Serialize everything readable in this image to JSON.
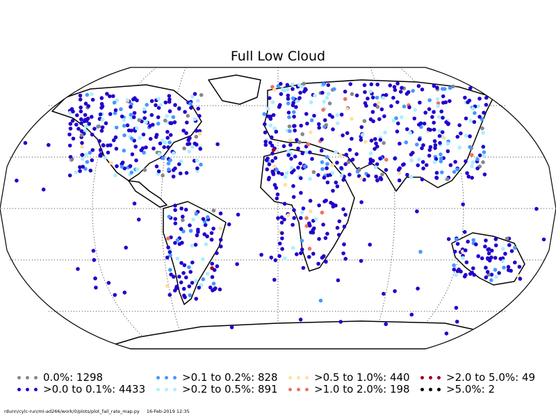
{
  "title": "Full Low Cloud",
  "legend": [
    {
      "label": "0.0%: 1298",
      "color": "#888888"
    },
    {
      "label": ">0.0 to 0.1%: 4433",
      "color": "#2200cc"
    },
    {
      "label": ">0.1 to 0.2%: 828",
      "color": "#4499ff"
    },
    {
      "label": ">0.2 to 0.5%: 891",
      "color": "#aaeeff"
    },
    {
      "label": ">0.5 to 1.0%: 440",
      "color": "#ffe0a0"
    },
    {
      "label": ">1.0 to 2.0%: 198",
      "color": "#f07060"
    },
    {
      "label": ">2.0 to 5.0%: 49",
      "color": "#a00020"
    },
    {
      "label": ">5.0%: 2",
      "color": "#000000"
    }
  ],
  "footer": {
    "path": "rdunn/cylc-run/mi-ad266/work/0/plots/plot_fail_rate_map.py",
    "timestamp": "16-Feb-2019 12:35"
  },
  "map": {
    "projection": "Robinson",
    "graticule": "dotted",
    "marker_colors": [
      "#888888",
      "#2200cc",
      "#4499ff",
      "#aaeeff",
      "#ffe0a0",
      "#f07060",
      "#a00020",
      "#000000"
    ]
  }
}
